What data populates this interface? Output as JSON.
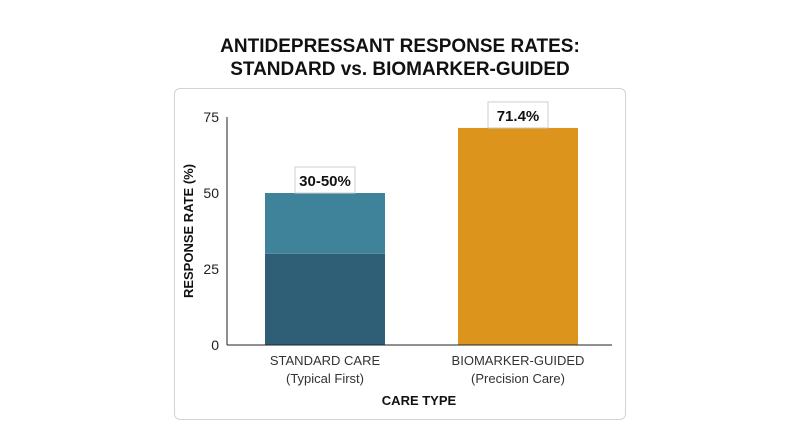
{
  "title_line1": "ANTIDEPRESSANT RESPONSE RATES:",
  "title_line2": "STANDARD vs. BIOMARKER-GUIDED",
  "chart_data": {
    "type": "bar",
    "title": "ANTIDEPRESSANT RESPONSE RATES: STANDARD vs. BIOMARKER-GUIDED",
    "xlabel": "CARE TYPE",
    "ylabel": "RESPONSE RATE (%)",
    "ylim": [
      0,
      75
    ],
    "yticks": [
      0,
      25,
      50,
      75
    ],
    "grid": false,
    "categories": [
      {
        "line1": "STANDARD CARE",
        "line2": "(Typical First)"
      },
      {
        "line1": "BIOMARKER-GUIDED",
        "line2": "(Precision Care)"
      }
    ],
    "bars": [
      {
        "category": "STANDARD CARE",
        "low": 30,
        "high": 50,
        "label": "30-50%",
        "color_base": "#2f5f77",
        "color_range": "#3e8399"
      },
      {
        "category": "BIOMARKER-GUIDED",
        "value": 71.4,
        "label": "71.4%",
        "color": "#dc941c"
      }
    ]
  }
}
